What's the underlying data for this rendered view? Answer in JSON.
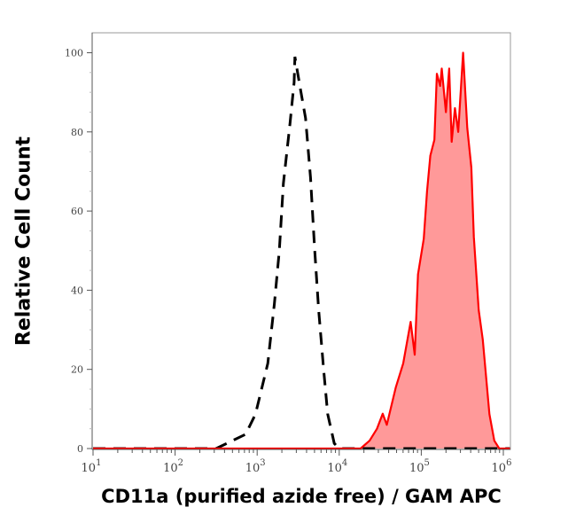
{
  "chart_data": {
    "type": "area",
    "title": "",
    "xlabel": "CD11a (purified azide free) / GAM APC",
    "ylabel": "Relative Cell Count",
    "x_scale": "log",
    "xlim": [
      10,
      1200000
    ],
    "ylim": [
      0,
      105
    ],
    "x_ticks": [
      10,
      100,
      1000,
      10000,
      100000,
      1000000
    ],
    "x_tick_labels": [
      {
        "base": "10",
        "exp": "1"
      },
      {
        "base": "10",
        "exp": "2"
      },
      {
        "base": "10",
        "exp": "3"
      },
      {
        "base": "10",
        "exp": "4"
      },
      {
        "base": "10",
        "exp": "5"
      },
      {
        "base": "10",
        "exp": "6"
      }
    ],
    "y_ticks": [
      0,
      20,
      40,
      60,
      80,
      100
    ],
    "y_tick_labels": [
      "0",
      "20",
      "40",
      "60",
      "80",
      "100"
    ],
    "grid": false,
    "legend": "none",
    "series": [
      {
        "style": "dashed-line",
        "color": "#000000",
        "log10_x": [
          1.0,
          2.5,
          2.57,
          2.86,
          2.98,
          3.13,
          3.21,
          3.27,
          3.32,
          3.4,
          3.45,
          3.46,
          3.52,
          3.59,
          3.65,
          3.7,
          3.75,
          3.81,
          3.86,
          3.94,
          4.0,
          6.08
        ],
        "y": [
          0,
          0,
          0.7,
          3.6,
          8.7,
          21.5,
          36.5,
          50,
          67,
          82,
          92.5,
          99,
          91.6,
          83.5,
          68.5,
          50.6,
          35,
          20,
          8.7,
          1.3,
          0,
          0
        ]
      },
      {
        "style": "filled-area",
        "color": "#ff0000",
        "fill": "#ff9999",
        "log10_x": [
          1.0,
          4.26,
          4.37,
          4.46,
          4.53,
          4.58,
          4.69,
          4.78,
          4.87,
          4.92,
          4.96,
          5.03,
          5.07,
          5.11,
          5.16,
          5.19,
          5.23,
          5.25,
          5.3,
          5.34,
          5.37,
          5.41,
          5.45,
          5.51,
          5.56,
          5.61,
          5.64,
          5.7,
          5.75,
          5.83,
          5.89,
          5.95,
          6.08
        ],
        "y": [
          0,
          0,
          2,
          5,
          8.8,
          6,
          15.5,
          21.5,
          32,
          23.7,
          44,
          53,
          65,
          74,
          78,
          94.7,
          91.6,
          96,
          85,
          96,
          77.5,
          86,
          80,
          100,
          81,
          71,
          53.5,
          35,
          27.5,
          8.7,
          2,
          0,
          0
        ]
      }
    ]
  }
}
